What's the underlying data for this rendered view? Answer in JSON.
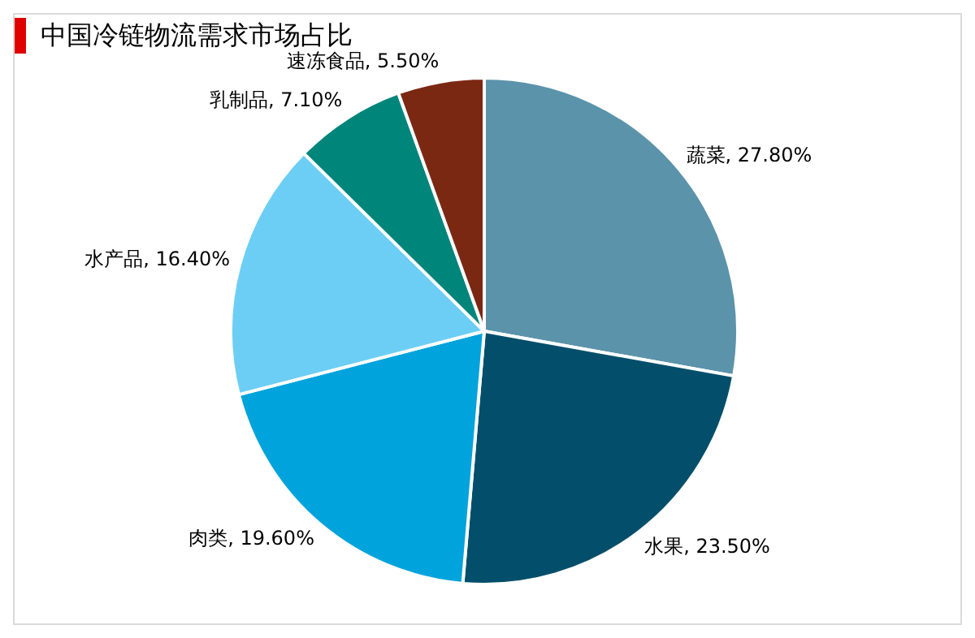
{
  "chart_data": {
    "type": "pie",
    "title": "中国冷链物流需求市场占比",
    "categories": [
      "蔬菜",
      "水果",
      "肉类",
      "水产品",
      "乳制品",
      "速冻食品"
    ],
    "values": [
      27.8,
      23.5,
      19.6,
      16.4,
      7.1,
      5.5
    ],
    "value_labels": [
      "27.80%",
      "23.50%",
      "19.60%",
      "16.40%",
      "7.10%",
      "5.50%"
    ],
    "colors": [
      "#5b93aa",
      "#034f6b",
      "#00a3dc",
      "#6ccef5",
      "#00857b",
      "#7b2812"
    ],
    "legend": false
  }
}
